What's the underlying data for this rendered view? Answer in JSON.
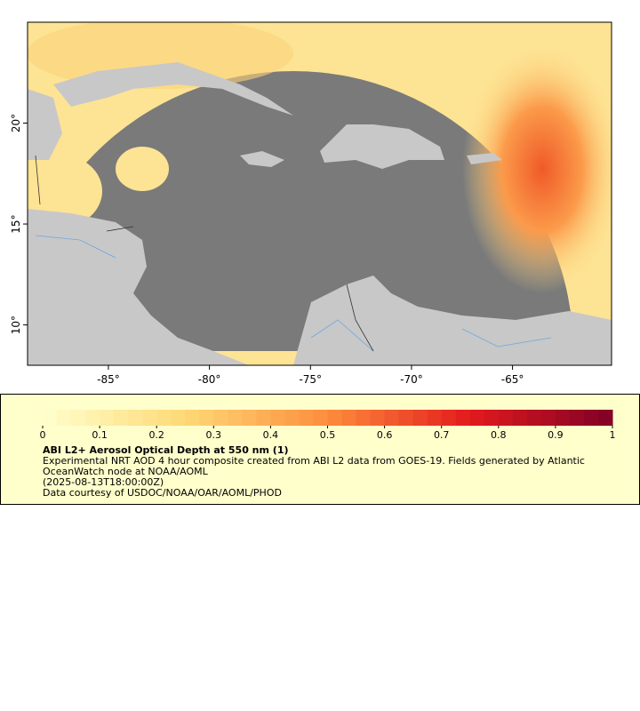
{
  "map": {
    "xticks": [
      {
        "value": -85,
        "label": "-85°"
      },
      {
        "value": -80,
        "label": "-80°"
      },
      {
        "value": -75,
        "label": "-75°"
      },
      {
        "value": -70,
        "label": "-70°"
      },
      {
        "value": -65,
        "label": "-65°"
      }
    ],
    "yticks": [
      {
        "value": 10,
        "label": "10°"
      },
      {
        "value": 15,
        "label": "15°"
      },
      {
        "value": 20,
        "label": "20°"
      }
    ],
    "xlim": [
      -89,
      -60.1
    ],
    "ylim": [
      8,
      25
    ]
  },
  "colorbar": {
    "lim": [
      0,
      1
    ],
    "ticks": [
      0,
      0.1,
      0.2,
      0.3,
      0.4,
      0.5,
      0.6,
      0.7,
      0.8,
      0.9,
      1
    ],
    "colors": [
      "#ffffcc",
      "#fed976",
      "#fd8d3c",
      "#e31a1c",
      "#800026"
    ]
  },
  "legend": {
    "title": "ABI L2+ Aerosol Optical Depth at 550 nm (1)",
    "description": "Experimental NRT AOD 4 hour composite created from ABI L2 data from GOES-19. Fields generated by Atlantic OceanWatch node at NOAA/AOML",
    "time": "(2025-08-13T18:00:00Z)",
    "credit": "Data courtesy of USDOC/NOAA/OAR/AOML/PHOD"
  }
}
